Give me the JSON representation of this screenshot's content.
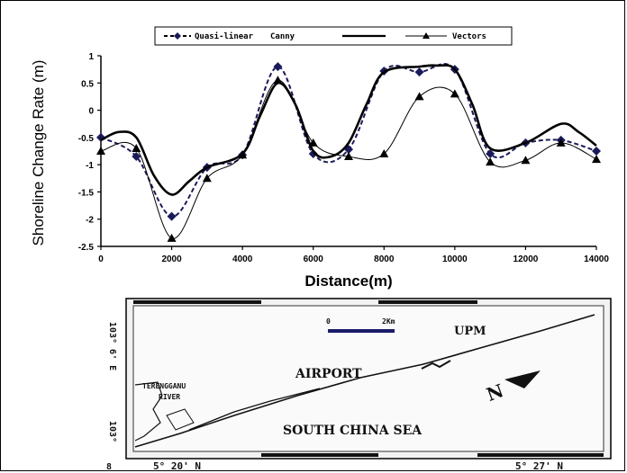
{
  "chart_data": {
    "type": "line",
    "title": "",
    "xlabel": "Distance(m)",
    "ylabel": "Shoreline Change Rate (m)",
    "xlim": [
      0,
      14000
    ],
    "ylim": [
      -2.5,
      1
    ],
    "xticks": [
      "0",
      "2000",
      "4000",
      "6000",
      "8000",
      "10000",
      "12000",
      "14000"
    ],
    "yticks": [
      "1",
      "0.5",
      "0",
      "-0.5",
      "-1",
      "-1.5",
      "-2",
      "-2.5"
    ],
    "legend_position": "top",
    "series": [
      {
        "name": "Quasi-linear",
        "style": "dashed",
        "marker": "diamond",
        "color": "#1a1a5a",
        "x": [
          0,
          1000,
          2000,
          3000,
          4000,
          5000,
          6000,
          7000,
          8000,
          9000,
          10000,
          11000,
          12000,
          13000,
          14000
        ],
        "y": [
          -0.5,
          -0.85,
          -1.95,
          -1.05,
          -0.82,
          0.8,
          -0.8,
          -0.72,
          0.72,
          0.7,
          0.75,
          -0.8,
          -0.6,
          -0.55,
          -0.75
        ]
      },
      {
        "name": "Canny",
        "style": "solid-thick",
        "marker": "none",
        "color": "#000000",
        "x": [
          0,
          500,
          1000,
          1500,
          2000,
          2500,
          3000,
          4000,
          4500,
          5000,
          5500,
          6000,
          6500,
          7000,
          7500,
          8000,
          9000,
          9500,
          10000,
          10500,
          11000,
          12000,
          13000,
          13500,
          14000
        ],
        "y": [
          -0.55,
          -0.4,
          -0.5,
          -1.2,
          -1.55,
          -1.3,
          -1.05,
          -0.8,
          -0.1,
          0.5,
          0.1,
          -0.75,
          -0.85,
          -0.6,
          0.1,
          0.7,
          0.8,
          0.82,
          0.75,
          0.1,
          -0.7,
          -0.6,
          -0.25,
          -0.4,
          -0.65
        ]
      },
      {
        "name": "Vectors",
        "style": "solid-thin",
        "marker": "triangle",
        "color": "#000000",
        "x": [
          0,
          1000,
          2000,
          3000,
          4000,
          5000,
          6000,
          7000,
          8000,
          9000,
          10000,
          11000,
          12000,
          13000,
          14000
        ],
        "y": [
          -0.75,
          -0.7,
          -2.35,
          -1.25,
          -0.82,
          0.55,
          -0.6,
          -0.85,
          -0.8,
          0.25,
          0.3,
          -0.95,
          -0.92,
          -0.6,
          -0.9
        ]
      }
    ]
  },
  "map": {
    "labels": {
      "upm": "UPM",
      "airport": "AIRPORT",
      "sea": "SOUTH CHINA SEA",
      "river_line1": "TERENGGANU",
      "river_line2": "RIVER",
      "scale_zero": "0",
      "scale_km": "2Km",
      "lon_left": "5° 20' N",
      "lon_right": "5° 27' N",
      "lat_top": "103° 6' E",
      "lat_bottom": "103°",
      "corner_mark": "8",
      "north": "N"
    }
  }
}
